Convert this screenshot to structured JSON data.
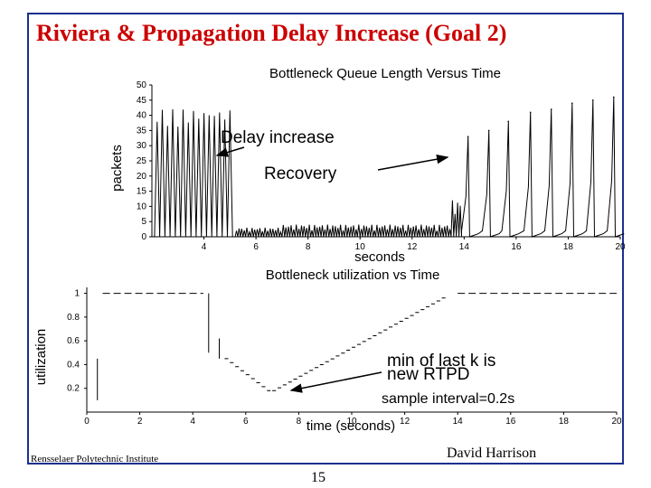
{
  "slide": {
    "title": "Riviera & Propagation Delay Increase (Goal 2)",
    "footer_left": "Rensselaer Polytechnic Institute",
    "footer_right": "David Harrison",
    "page_number": "15"
  },
  "chart_data": [
    {
      "type": "line",
      "title": "Bottleneck Queue Length Versus Time",
      "xlabel": "seconds",
      "ylabel": "packets",
      "xlim": [
        2,
        20
      ],
      "ylim": [
        0,
        50
      ],
      "x_ticks": [
        4,
        6,
        8,
        10,
        12,
        14,
        16,
        18,
        20
      ],
      "y_ticks": [
        0,
        5,
        10,
        15,
        20,
        25,
        30,
        35,
        40,
        45,
        50
      ],
      "grid": false,
      "series": [
        {
          "name": "queue length",
          "oscillation": [
            {
              "x_start": 2.1,
              "x_end": 5.1,
              "period": 0.2,
              "low": 0,
              "high": 42
            },
            {
              "x_start": 5.2,
              "x_end": 7.0,
              "period": 0.1,
              "low": 0,
              "high": 3
            },
            {
              "x_start": 7.0,
              "x_end": 13.5,
              "period": 0.1,
              "low": 0,
              "high": 4
            },
            {
              "x_start": 13.5,
              "x_end": 13.9,
              "period": 0.1,
              "low": 0,
              "high": 12
            }
          ],
          "peaks": [
            {
              "x": 14.15,
              "y": 33
            },
            {
              "x": 14.95,
              "y": 35
            },
            {
              "x": 15.7,
              "y": 38
            },
            {
              "x": 16.55,
              "y": 41
            },
            {
              "x": 17.35,
              "y": 42
            },
            {
              "x": 18.15,
              "y": 44
            },
            {
              "x": 18.95,
              "y": 45
            },
            {
              "x": 19.75,
              "y": 46
            }
          ]
        }
      ],
      "annotations": [
        {
          "text": "Delay increase",
          "arrow_to": {
            "x": 5.0,
            "y": 27
          }
        },
        {
          "text": "Recovery",
          "arrow_to": {
            "x": 13.8,
            "y": 26
          }
        }
      ]
    },
    {
      "type": "scatter",
      "title": "Bottleneck utilization vs Time",
      "xlabel": "time (seconds)",
      "ylabel": "utilization",
      "xlim": [
        0,
        20
      ],
      "ylim": [
        0,
        1.05
      ],
      "x_ticks": [
        0,
        2,
        4,
        6,
        8,
        10,
        12,
        14,
        16,
        18,
        20
      ],
      "y_ticks": [
        0.2,
        0.4,
        0.6,
        0.8,
        1
      ],
      "grid": false,
      "segments": [
        {
          "x_start": 0.4,
          "x_end": 0.4,
          "y_start": 0.1,
          "y_end": 0.45,
          "kind": "vertical"
        },
        {
          "x_start": 0.6,
          "x_end": 4.4,
          "y": 1.0,
          "kind": "dashed"
        },
        {
          "x_start": 4.6,
          "x_end": 4.6,
          "y_start": 0.5,
          "y_end": 1.0,
          "kind": "vertical"
        },
        {
          "x_start": 5.0,
          "x_end": 5.0,
          "y_start": 0.45,
          "y_end": 0.62,
          "kind": "vertical"
        },
        {
          "x_start": 5.2,
          "x_end": 7.0,
          "y_start": 0.45,
          "y_end": 0.18,
          "kind": "stair"
        },
        {
          "x_start": 7.0,
          "x_end": 13.5,
          "y_start": 0.18,
          "y_end": 0.96,
          "kind": "stair"
        },
        {
          "x_start": 14.0,
          "x_end": 20.0,
          "y": 1.0,
          "kind": "dashed"
        }
      ],
      "annotations": [
        {
          "text": "min of last k is",
          "arrow_to": {
            "x": 7.6,
            "y": 0.18
          }
        },
        {
          "text": "new RTPD"
        },
        {
          "text": "sample interval=0.2s"
        }
      ]
    }
  ]
}
